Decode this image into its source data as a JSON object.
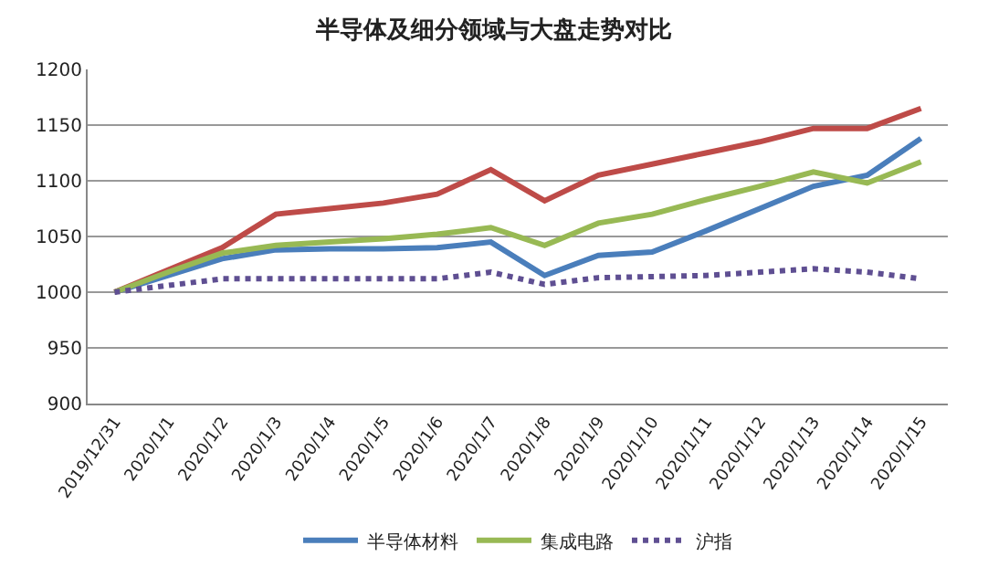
{
  "chart_data": {
    "type": "line",
    "title": "半导体及细分领域与大盘走势对比",
    "categories": [
      "2019/12/31",
      "2020/1/1",
      "2020/1/2",
      "2020/1/3",
      "2020/1/4",
      "2020/1/5",
      "2020/1/6",
      "2020/1/7",
      "2020/1/8",
      "2020/1/9",
      "2020/1/10",
      "2020/1/11",
      "2020/1/12",
      "2020/1/13",
      "2020/1/14",
      "2020/1/15"
    ],
    "series": [
      {
        "name": "半导体材料",
        "color": "#4a7ebb",
        "values": [
          1000,
          1015,
          1030,
          1038,
          1039,
          1039,
          1040,
          1045,
          1015,
          1033,
          1036,
          1055,
          1075,
          1095,
          1105,
          1138
        ]
      },
      {
        "color": "#be4b48",
        "values": [
          1000,
          1020,
          1040,
          1070,
          1075,
          1080,
          1088,
          1110,
          1082,
          1105,
          1115,
          1125,
          1135,
          1147,
          1147,
          1165
        ]
      },
      {
        "name": "集成电路",
        "color": "#98b954",
        "values": [
          1000,
          1018,
          1035,
          1042,
          1045,
          1048,
          1052,
          1058,
          1042,
          1062,
          1070,
          1083,
          1095,
          1108,
          1098,
          1117
        ]
      },
      {
        "name": "沪指",
        "color": "#5f4f92",
        "line_style": "dotted",
        "values": [
          1000,
          1006,
          1012,
          1012,
          1012,
          1012,
          1012,
          1018,
          1007,
          1013,
          1014,
          1015,
          1018,
          1021,
          1018,
          1012
        ]
      }
    ],
    "ylim": [
      900,
      1200
    ],
    "yticks": [
      900,
      950,
      1000,
      1050,
      1100,
      1150,
      1200
    ],
    "grid": "y",
    "legend": "bottom",
    "marker": "none",
    "line_style": "solid"
  }
}
